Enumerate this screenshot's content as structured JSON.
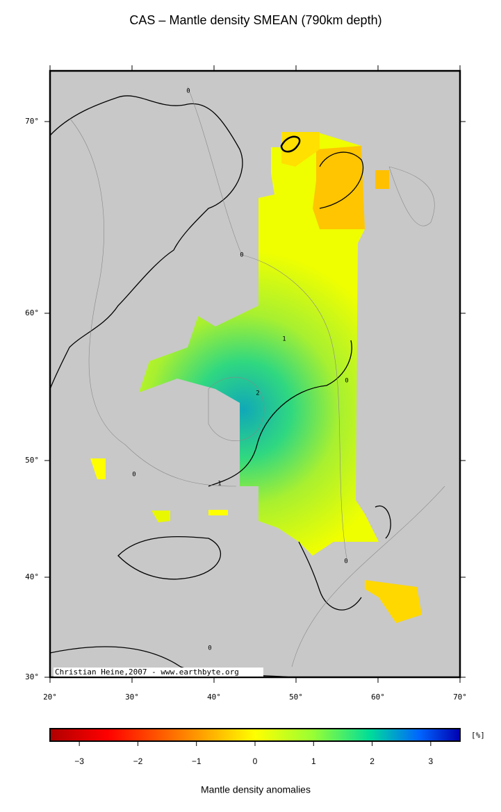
{
  "title": "CAS – Mantle density SMEAN (790km depth)",
  "map": {
    "lon_range": [
      20,
      70
    ],
    "lon_ticks": [
      {
        "value": 20,
        "label": "20°"
      },
      {
        "value": 30,
        "label": "30°"
      },
      {
        "value": 40,
        "label": "40°"
      },
      {
        "value": 50,
        "label": "50°"
      },
      {
        "value": 60,
        "label": "60°"
      },
      {
        "value": 70,
        "label": "70°"
      }
    ],
    "lat_ticks": [
      {
        "value": 30,
        "label": "30°"
      },
      {
        "value": 40,
        "label": "40°"
      },
      {
        "value": 50,
        "label": "50°"
      },
      {
        "value": 60,
        "label": "60°"
      },
      {
        "value": 70,
        "label": "70°"
      }
    ],
    "contour_labels": [
      0,
      0,
      0,
      0,
      0,
      0,
      1,
      2,
      1
    ],
    "credit": "Christian Heine,2007 - www.earthbyte.org"
  },
  "colorbar": {
    "range": [
      -3.5,
      3.5
    ],
    "ticks": [
      {
        "value": -3,
        "label": "−3"
      },
      {
        "value": -2,
        "label": "−2"
      },
      {
        "value": -1,
        "label": "−1"
      },
      0,
      1,
      2,
      3
    ],
    "unit": "[%]",
    "label": "Mantle density anomalies"
  }
}
